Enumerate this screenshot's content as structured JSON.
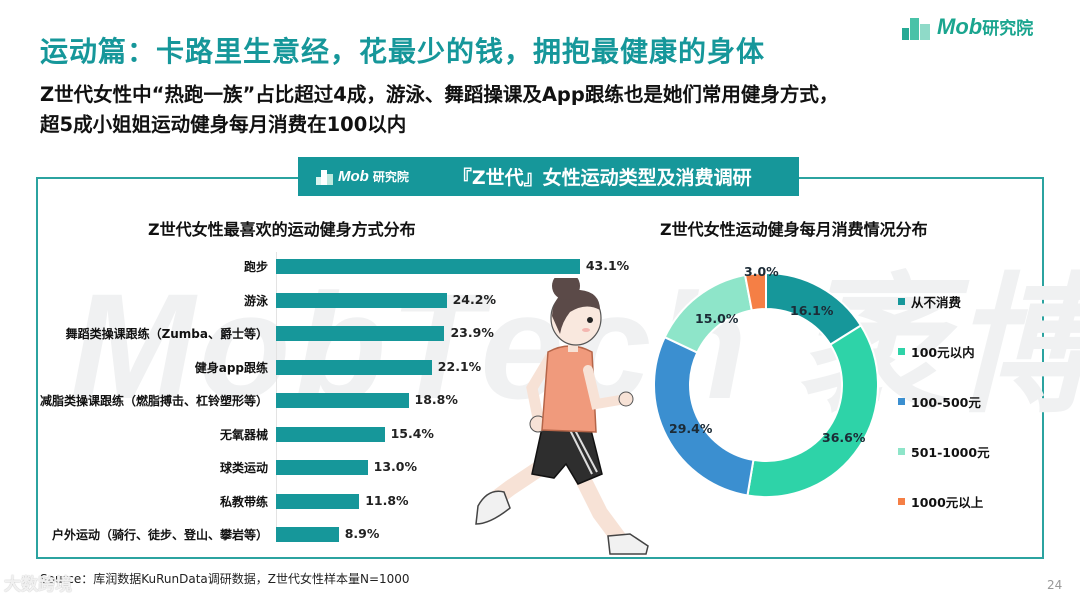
{
  "header": {
    "title": "运动篇：卡路里生意经，花最少的钱，拥抱最健康的身体",
    "subtitle_line1": "Z世代女性中“热跑一族”占比超过4成，游泳、舞蹈操课及App跟练也是她们常用健身方式，",
    "subtitle_line2": "超5成小姐姐运动健身每月消费在100以内",
    "brand_latin": "Mob",
    "brand_cn": "研究院"
  },
  "band": {
    "logo_latin": "Mob",
    "logo_cn": "研究院",
    "title": "『Z世代』女性运动类型及消费调研"
  },
  "watermark": {
    "text": "MobTech 袤博"
  },
  "colors": {
    "accent": "#16979a",
    "bar": "#16979a",
    "panel_border": "#2ba3a0",
    "never": "#16979a",
    "under100": "#2ed3a8",
    "r100_500": "#3b8fd0",
    "r501_1000": "#8ee5c9",
    "over1000": "#f57f45"
  },
  "chart_data": [
    {
      "type": "bar",
      "orientation": "horizontal",
      "title": "Z世代女性最喜欢的运动健身方式分布",
      "categories": [
        "跑步",
        "游泳",
        "舞蹈类操课跟练（Zumba、爵士等）",
        "健身app跟练",
        "减脂类操课跟练（燃脂搏击、杠铃塑形等）",
        "无氧器械",
        "球类运动",
        "私教带练",
        "户外运动（骑行、徒步、登山、攀岩等）"
      ],
      "values": [
        43.1,
        24.2,
        23.9,
        22.1,
        18.8,
        15.4,
        13.0,
        11.8,
        8.9
      ],
      "value_labels": [
        "43.1%",
        "24.2%",
        "23.9%",
        "22.1%",
        "18.8%",
        "15.4%",
        "13.0%",
        "11.8%",
        "8.9%"
      ],
      "xlabel": "",
      "ylabel": "",
      "unit": "%",
      "grid": false
    },
    {
      "type": "pie",
      "variant": "donut",
      "title": "Z世代女性运动健身每月消费情况分布",
      "categories": [
        "从不消费",
        "100元以内",
        "100-500元",
        "501-1000元",
        "1000元以上"
      ],
      "values": [
        16.1,
        36.6,
        29.4,
        15.0,
        3.0
      ],
      "value_labels": [
        "16.1%",
        "36.6%",
        "29.4%",
        "15.0%",
        "3.0%"
      ],
      "legend_position": "right",
      "start_angle_deg": 0,
      "direction": "clockwise"
    }
  ],
  "footer": {
    "source": "Source：库润数据KuRunData调研数据，Z世代女性样本量N=1000",
    "page_number": "24",
    "overlay_watermark": "大数跨境"
  }
}
